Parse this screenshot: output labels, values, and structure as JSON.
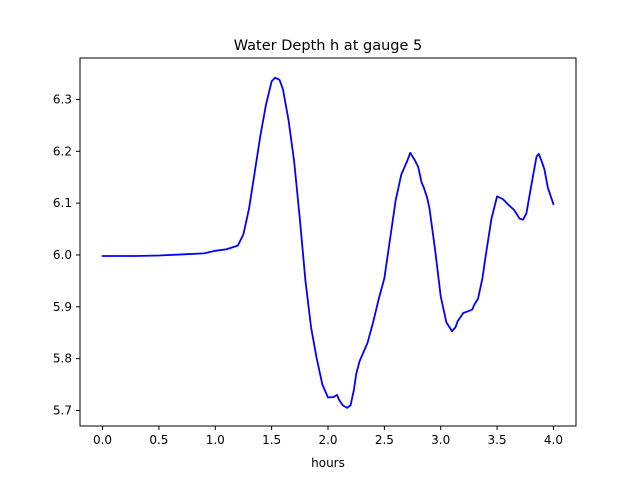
{
  "chart_data": {
    "type": "line",
    "title": "Water Depth h at gauge 5",
    "xlabel": "hours",
    "ylabel": "",
    "xlim": [
      -0.2,
      4.2
    ],
    "ylim": [
      5.67,
      6.38
    ],
    "xticks": [
      0.0,
      0.5,
      1.0,
      1.5,
      2.0,
      2.5,
      3.0,
      3.5,
      4.0
    ],
    "xtick_labels": [
      "0.0",
      "0.5",
      "1.0",
      "1.5",
      "2.0",
      "2.5",
      "3.0",
      "3.5",
      "4.0"
    ],
    "yticks": [
      5.7,
      5.8,
      5.9,
      6.0,
      6.1,
      6.2,
      6.3
    ],
    "ytick_labels": [
      "5.7",
      "5.8",
      "5.9",
      "6.0",
      "6.1",
      "6.2",
      "6.3"
    ],
    "grid": false,
    "series": [
      {
        "color": "#0000ff",
        "x": [
          0.0,
          0.3,
          0.5,
          0.7,
          0.9,
          1.0,
          1.1,
          1.2,
          1.25,
          1.3,
          1.35,
          1.4,
          1.45,
          1.5,
          1.53,
          1.57,
          1.6,
          1.65,
          1.7,
          1.75,
          1.8,
          1.85,
          1.9,
          1.95,
          2.0,
          2.05,
          2.08,
          2.1,
          2.13,
          2.17,
          2.2,
          2.23,
          2.25,
          2.28,
          2.3,
          2.35,
          2.4,
          2.45,
          2.5,
          2.55,
          2.6,
          2.65,
          2.7,
          2.73,
          2.77,
          2.8,
          2.83,
          2.85,
          2.88,
          2.9,
          2.95,
          3.0,
          3.05,
          3.1,
          3.13,
          3.15,
          3.2,
          3.25,
          3.28,
          3.3,
          3.33,
          3.37,
          3.4,
          3.45,
          3.5,
          3.55,
          3.6,
          3.65,
          3.7,
          3.73,
          3.76,
          3.8,
          3.85,
          3.87,
          3.9,
          3.92,
          3.95,
          4.0
        ],
        "y": [
          5.998,
          5.998,
          5.999,
          6.001,
          6.003,
          6.008,
          6.011,
          6.018,
          6.04,
          6.09,
          6.16,
          6.23,
          6.29,
          6.335,
          6.342,
          6.338,
          6.32,
          6.26,
          6.18,
          6.07,
          5.95,
          5.86,
          5.8,
          5.75,
          5.725,
          5.726,
          5.73,
          5.72,
          5.71,
          5.705,
          5.71,
          5.74,
          5.77,
          5.795,
          5.805,
          5.83,
          5.87,
          5.915,
          5.955,
          6.03,
          6.105,
          6.155,
          6.18,
          6.197,
          6.183,
          6.17,
          6.14,
          6.13,
          6.11,
          6.09,
          6.01,
          5.92,
          5.87,
          5.853,
          5.86,
          5.872,
          5.888,
          5.892,
          5.895,
          5.905,
          5.915,
          5.955,
          6.0,
          6.07,
          6.113,
          6.108,
          6.097,
          6.087,
          6.07,
          6.068,
          6.08,
          6.13,
          6.19,
          6.195,
          6.178,
          6.165,
          6.13,
          6.098
        ]
      }
    ]
  }
}
